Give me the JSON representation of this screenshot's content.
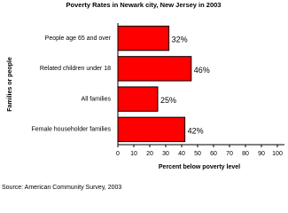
{
  "chart_data": {
    "type": "barh",
    "title": "Poverty Rates in Newark city, New Jersey in 2003",
    "categories": [
      "People age 65 and over",
      "Related children under 18",
      "All families",
      "Female householder families"
    ],
    "values": [
      32,
      46,
      25,
      42
    ],
    "value_labels": [
      "32%",
      "46%",
      "25%",
      "42%"
    ],
    "color": "#ff0000",
    "xlim": [
      0,
      100
    ],
    "xticks": [
      0,
      10,
      20,
      30,
      40,
      50,
      60,
      70,
      80,
      90,
      100
    ],
    "xlabel": "Percent below poverty level",
    "ylabel": "Families or people",
    "source": "Source: American Community Survey, 2003"
  }
}
